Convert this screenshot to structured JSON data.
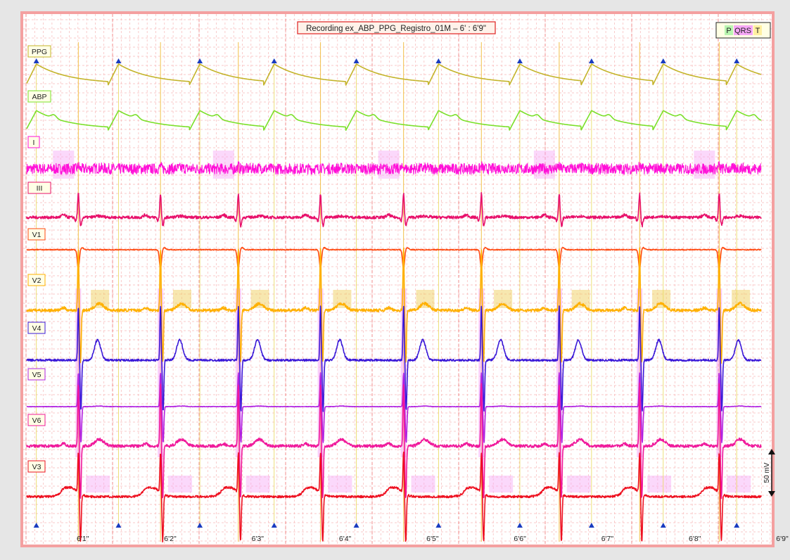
{
  "chart_data": {
    "type": "line",
    "title": "Recording ex_ABP_PPG_Registro_01M – 6' : 6'9\"",
    "legend": {
      "placement": "top-right",
      "items": [
        {
          "label": "P",
          "color": "#b9f5b0"
        },
        {
          "label": "QRS",
          "color": "#f6a8f6"
        },
        {
          "label": "T",
          "color": "#fff0a0"
        }
      ]
    },
    "x_unit": "s",
    "xlim": [
      60.6,
      69.0
    ],
    "x_ticks": [
      {
        "t": 61.0,
        "label": "6'1\""
      },
      {
        "t": 62.0,
        "label": "6'2\""
      },
      {
        "t": 63.0,
        "label": "6'3\""
      },
      {
        "t": 64.0,
        "label": "6'4\""
      },
      {
        "t": 65.0,
        "label": "6'5\""
      },
      {
        "t": 66.0,
        "label": "6'6\""
      },
      {
        "t": 67.0,
        "label": "6'7\""
      },
      {
        "t": 68.0,
        "label": "6'8\""
      },
      {
        "t": 69.0,
        "label": "6'9\""
      }
    ],
    "beats_s": [
      61.19,
      62.13,
      63.02,
      63.96,
      64.91,
      65.8,
      66.69,
      67.61,
      68.52
    ],
    "ppg_peaks_s": [
      60.71,
      61.65,
      62.58,
      63.43,
      64.37,
      65.31,
      66.24,
      67.06,
      67.88,
      68.72
    ],
    "scale_bar": {
      "label": "50 mV",
      "value": 50
    },
    "grid": true,
    "series": [
      {
        "name": "PPG",
        "color": "#c4b42a",
        "kind": "ppg"
      },
      {
        "name": "ABP",
        "color": "#7be02a",
        "kind": "abp"
      },
      {
        "name": "I",
        "color": "#ff10d8",
        "kind": "ecg_noisy"
      },
      {
        "name": "III",
        "color": "#e8106a",
        "kind": "ecg_up"
      },
      {
        "name": "V1",
        "color": "#ff4a10",
        "kind": "ecg_down"
      },
      {
        "name": "V2",
        "color": "#ffb000",
        "kind": "ecg_big"
      },
      {
        "name": "V4",
        "color": "#3a18d8",
        "kind": "ecg_t"
      },
      {
        "name": "V5",
        "color": "#b020e0",
        "kind": "ecg_flat"
      },
      {
        "name": "V6",
        "color": "#f0189a",
        "kind": "ecg_big"
      },
      {
        "name": "V3",
        "color": "#ee1020",
        "kind": "ecg_big_t"
      }
    ]
  }
}
